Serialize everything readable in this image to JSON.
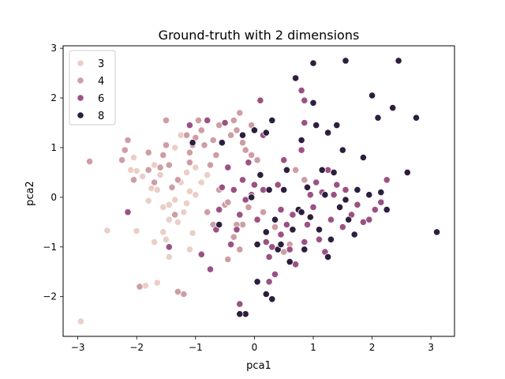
{
  "chart_data": {
    "type": "scatter",
    "title": "Ground-truth with 2 dimensions",
    "xlabel": "pca1",
    "ylabel": "pca2",
    "xlim": [
      -3.25,
      3.4
    ],
    "ylim": [
      -2.8,
      3.05
    ],
    "xticks": [
      -3,
      -2,
      -1,
      0,
      1,
      2,
      3
    ],
    "yticks": [
      -2,
      -1,
      0,
      1,
      2,
      3
    ],
    "grid": false,
    "legend_position": "top-left",
    "series": [
      {
        "name": "3",
        "color": "#eacfc7",
        "points": [
          [
            -2.95,
            -2.5
          ],
          [
            -2.5,
            -0.67
          ],
          [
            -2.0,
            -0.68
          ],
          [
            -2.1,
            0.55
          ],
          [
            -2.05,
            0.8
          ],
          [
            -2.0,
            0.53
          ],
          [
            -1.9,
            0.42
          ],
          [
            -1.75,
            0.18
          ],
          [
            -1.8,
            -0.07
          ],
          [
            -1.65,
            0.15
          ],
          [
            -1.55,
            -0.2
          ],
          [
            -1.45,
            -0.15
          ],
          [
            -1.35,
            -0.05
          ],
          [
            -1.25,
            0.3
          ],
          [
            -1.2,
            -0.3
          ],
          [
            -1.15,
            -0.12
          ],
          [
            -1.1,
            0.12
          ],
          [
            -1.45,
            -0.45
          ],
          [
            -1.3,
            -0.5
          ],
          [
            -1.5,
            -0.85
          ],
          [
            -1.45,
            -1.2
          ],
          [
            -1.05,
            -0.72
          ],
          [
            -1.0,
            0.05
          ],
          [
            -1.35,
            1.0
          ],
          [
            -1.25,
            1.25
          ],
          [
            -1.0,
            0.6
          ],
          [
            -0.9,
            0.3
          ],
          [
            -1.15,
            0.5
          ],
          [
            -1.6,
            0.45
          ],
          [
            -1.7,
            -0.9
          ],
          [
            -1.85,
            -1.78
          ],
          [
            -1.65,
            -1.72
          ],
          [
            -1.1,
            -1.05
          ],
          [
            -1.55,
            -0.7
          ],
          [
            -0.8,
            0.45
          ],
          [
            -1.7,
            0.65
          ]
        ]
      },
      {
        "name": "4",
        "color": "#cf9da4",
        "points": [
          [
            -2.8,
            0.72
          ],
          [
            -2.25,
            0.75
          ],
          [
            -2.2,
            0.95
          ],
          [
            -2.15,
            1.15
          ],
          [
            -2.05,
            0.35
          ],
          [
            -1.95,
            -1.8
          ],
          [
            -1.8,
            0.9
          ],
          [
            -1.8,
            0.55
          ],
          [
            -1.7,
            0.3
          ],
          [
            -1.6,
            0.6
          ],
          [
            -1.55,
            0.85
          ],
          [
            -1.5,
            1.05
          ],
          [
            -1.5,
            1.55
          ],
          [
            -1.45,
            0.65
          ],
          [
            -1.4,
            0.2
          ],
          [
            -1.35,
            -0.35
          ],
          [
            -1.3,
            0.35
          ],
          [
            -1.3,
            -1.9
          ],
          [
            -1.2,
            -1.95
          ],
          [
            -1.15,
            1.25
          ],
          [
            -1.1,
            0.9
          ],
          [
            -1.1,
            0.7
          ],
          [
            -1.05,
            1.05
          ],
          [
            -1.0,
            1.2
          ],
          [
            -0.95,
            1.55
          ],
          [
            -0.9,
            1.35
          ],
          [
            -0.85,
            1.05
          ],
          [
            -0.8,
            -0.3
          ],
          [
            -0.75,
            0.65
          ],
          [
            -0.7,
            1.15
          ],
          [
            -0.7,
            -0.55
          ],
          [
            -0.65,
            0.85
          ],
          [
            -0.6,
            1.45
          ],
          [
            -0.55,
            1.1
          ],
          [
            -0.5,
            -0.15
          ],
          [
            -0.45,
            -0.1
          ],
          [
            -0.4,
            1.25
          ],
          [
            -0.35,
            1.55
          ],
          [
            -0.3,
            1.35
          ],
          [
            -0.25,
            1.7
          ],
          [
            -0.2,
            1.1
          ],
          [
            -0.15,
            0.95
          ],
          [
            -0.1,
            -0.2
          ],
          [
            -0.05,
            1.45
          ],
          [
            -0.2,
            -0.55
          ],
          [
            -0.45,
            -1.25
          ],
          [
            -0.35,
            -0.8
          ],
          [
            -0.25,
            -1.05
          ],
          [
            -0.05,
            0.85
          ],
          [
            0.05,
            0.75
          ],
          [
            0.15,
            -0.3
          ],
          [
            0.25,
            0.15
          ],
          [
            0.35,
            -0.6
          ],
          [
            0.7,
            0.55
          ],
          [
            0.85,
            0.35
          ],
          [
            0.6,
            -0.95
          ],
          [
            0.5,
            -1.1
          ],
          [
            -0.6,
            0.15
          ],
          [
            -0.3,
            -0.55
          ]
        ]
      },
      {
        "name": "6",
        "color": "#9b5283",
        "points": [
          [
            -2.15,
            -0.3
          ],
          [
            -1.45,
            -1.0
          ],
          [
            -1.1,
            1.45
          ],
          [
            -0.9,
            -1.15
          ],
          [
            -0.8,
            1.55
          ],
          [
            -0.75,
            -1.45
          ],
          [
            -0.65,
            -0.65
          ],
          [
            -0.6,
            -0.25
          ],
          [
            -0.55,
            0.2
          ],
          [
            -0.5,
            1.5
          ],
          [
            -0.45,
            0.6
          ],
          [
            -0.4,
            -0.95
          ],
          [
            -0.3,
            -0.65
          ],
          [
            -0.25,
            -0.35
          ],
          [
            -0.2,
            0.35
          ],
          [
            -0.15,
            -0.05
          ],
          [
            -0.1,
            0.7
          ],
          [
            -0.05,
            0.05
          ],
          [
            0.0,
            0.25
          ],
          [
            0.05,
            -0.45
          ],
          [
            0.1,
            1.95
          ],
          [
            0.15,
            0.15
          ],
          [
            0.2,
            -0.9
          ],
          [
            0.25,
            -1.2
          ],
          [
            0.3,
            -1.0
          ],
          [
            0.35,
            -1.55
          ],
          [
            0.4,
            0.25
          ],
          [
            0.45,
            -0.75
          ],
          [
            0.5,
            0.75
          ],
          [
            0.55,
            -0.55
          ],
          [
            0.6,
            -1.05
          ],
          [
            0.65,
            -0.35
          ],
          [
            0.7,
            -1.35
          ],
          [
            0.8,
            0.95
          ],
          [
            0.85,
            1.5
          ],
          [
            0.9,
            -0.55
          ],
          [
            0.95,
            0.05
          ],
          [
            1.0,
            -0.2
          ],
          [
            1.05,
            0.3
          ],
          [
            1.1,
            -0.85
          ],
          [
            1.15,
            0.1
          ],
          [
            1.2,
            -1.1
          ],
          [
            1.25,
            0.55
          ],
          [
            1.3,
            -0.45
          ],
          [
            1.35,
            0.05
          ],
          [
            1.4,
            0.25
          ],
          [
            1.5,
            -0.6
          ],
          [
            1.55,
            0.15
          ],
          [
            1.65,
            -0.35
          ],
          [
            1.75,
            -0.15
          ],
          [
            1.85,
            -0.5
          ],
          [
            1.95,
            -0.45
          ],
          [
            2.05,
            -0.25
          ],
          [
            2.15,
            -0.1
          ],
          [
            2.25,
            0.35
          ],
          [
            0.05,
            -1.7
          ],
          [
            0.25,
            -1.7
          ],
          [
            -0.25,
            -2.15
          ],
          [
            0.8,
            2.15
          ],
          [
            0.85,
            1.95
          ],
          [
            0.15,
            1.25
          ],
          [
            -0.35,
            0.15
          ],
          [
            0.45,
            -0.25
          ],
          [
            0.85,
            -0.9
          ]
        ]
      },
      {
        "name": "8",
        "color": "#2d1e3e",
        "points": [
          [
            -1.05,
            1.1
          ],
          [
            -0.55,
            1.1
          ],
          [
            -0.2,
            1.25
          ],
          [
            -0.05,
            0.0
          ],
          [
            0.0,
            1.35
          ],
          [
            0.05,
            -0.95
          ],
          [
            0.1,
            0.45
          ],
          [
            0.2,
            1.3
          ],
          [
            0.25,
            0.15
          ],
          [
            0.3,
            1.55
          ],
          [
            0.35,
            -0.45
          ],
          [
            0.4,
            -1.05
          ],
          [
            0.45,
            -0.95
          ],
          [
            0.5,
            0.15
          ],
          [
            0.55,
            0.55
          ],
          [
            0.6,
            -1.3
          ],
          [
            0.65,
            -0.65
          ],
          [
            0.7,
            2.4
          ],
          [
            0.75,
            -0.25
          ],
          [
            0.8,
            1.15
          ],
          [
            0.85,
            -1.05
          ],
          [
            0.9,
            0.2
          ],
          [
            0.95,
            -0.4
          ],
          [
            1.0,
            2.7
          ],
          [
            1.0,
            1.9
          ],
          [
            1.05,
            1.45
          ],
          [
            1.1,
            -0.65
          ],
          [
            1.15,
            0.55
          ],
          [
            1.2,
            0.05
          ],
          [
            1.25,
            1.3
          ],
          [
            1.3,
            -0.85
          ],
          [
            1.35,
            0.5
          ],
          [
            1.4,
            1.45
          ],
          [
            1.45,
            -0.2
          ],
          [
            1.5,
            0.95
          ],
          [
            1.55,
            2.75
          ],
          [
            1.6,
            -0.45
          ],
          [
            1.7,
            -0.75
          ],
          [
            1.75,
            0.15
          ],
          [
            1.85,
            0.8
          ],
          [
            1.95,
            0.05
          ],
          [
            2.0,
            2.05
          ],
          [
            2.1,
            1.6
          ],
          [
            2.15,
            0.1
          ],
          [
            2.25,
            -0.25
          ],
          [
            2.35,
            1.8
          ],
          [
            2.45,
            2.75
          ],
          [
            2.6,
            0.5
          ],
          [
            2.75,
            1.6
          ],
          [
            3.1,
            -0.7
          ],
          [
            0.3,
            -2.05
          ],
          [
            -0.15,
            -2.35
          ],
          [
            -0.25,
            -2.35
          ],
          [
            0.2,
            -1.95
          ],
          [
            0.05,
            -1.7
          ],
          [
            -0.6,
            -0.55
          ],
          [
            0.2,
            -0.7
          ],
          [
            1.25,
            -1.2
          ],
          [
            0.8,
            -0.3
          ],
          [
            1.55,
            -0.05
          ]
        ]
      }
    ]
  }
}
